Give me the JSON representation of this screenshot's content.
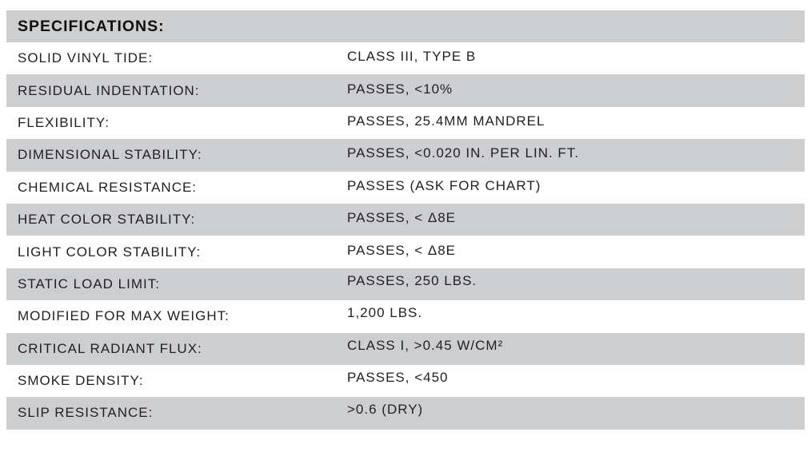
{
  "table": {
    "title": "SPECIFICATIONS:",
    "colors": {
      "stripe": "#cdced0",
      "text": "#1f2023",
      "title_text": "#0f0f10"
    },
    "rows": [
      {
        "label": "SOLID VINYL TIDE:",
        "value": "CLASS III, TYPE B"
      },
      {
        "label": "RESIDUAL INDENTATION:",
        "value": "PASSES, <10%"
      },
      {
        "label": "FLEXIBILITY:",
        "value": "PASSES, 25.4MM MANDREL"
      },
      {
        "label": "DIMENSIONAL STABILITY:",
        "value": "PASSES, <0.020 IN. PER LIN. FT."
      },
      {
        "label": "CHEMICAL RESISTANCE:",
        "value": "PASSES (ASK FOR CHART)"
      },
      {
        "label": "HEAT COLOR STABILITY:",
        "value": "PASSES, < Δ8E"
      },
      {
        "label": "LIGHT COLOR STABILITY:",
        "value": "PASSES, < Δ8E"
      },
      {
        "label": "STATIC LOAD LIMIT:",
        "value": "PASSES, 250 LBS."
      },
      {
        "label": "MODIFIED FOR MAX WEIGHT:",
        "value": "1,200 LBS."
      },
      {
        "label": "CRITICAL RADIANT FLUX:",
        "value": "CLASS I, >0.45 W/CM²"
      },
      {
        "label": "SMOKE DENSITY:",
        "value": "PASSES, <450"
      },
      {
        "label": "SLIP RESISTANCE:",
        "value": ">0.6 (DRY)"
      }
    ]
  }
}
